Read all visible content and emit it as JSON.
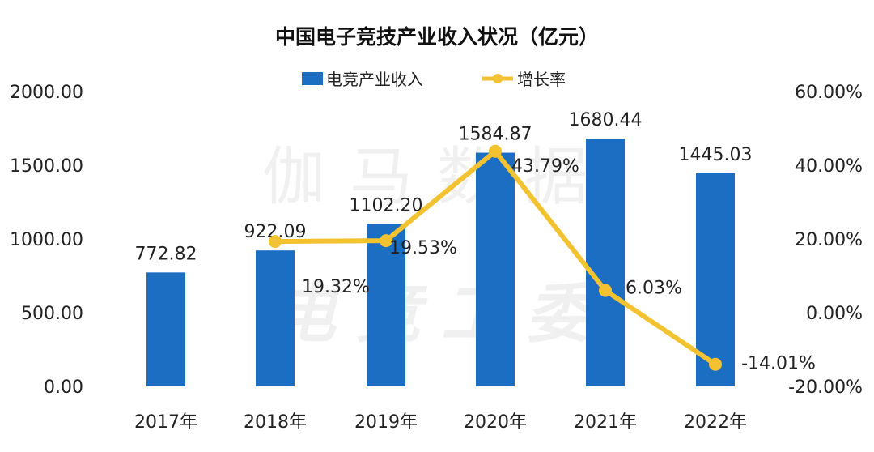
{
  "chart_data": {
    "type": "bar",
    "title": "中国电子竞技产业收入状况（亿元）",
    "categories": [
      "2017年",
      "2018年",
      "2019年",
      "2020年",
      "2021年",
      "2022年"
    ],
    "series": [
      {
        "name": "电竞产业收入",
        "type": "bar",
        "axis": "left",
        "color": "#1B6EC2",
        "values": [
          772.82,
          922.09,
          1102.2,
          1584.87,
          1680.44,
          1445.03
        ],
        "labels": [
          "772.82",
          "922.09",
          "1102.20",
          "1584.87",
          "1680.44",
          "1445.03"
        ]
      },
      {
        "name": "增长率",
        "type": "line",
        "axis": "right",
        "color": "#F2C230",
        "values": [
          null,
          19.32,
          19.53,
          43.79,
          6.03,
          -14.01
        ],
        "labels": [
          "",
          "19.32%",
          "19.53%",
          "43.79%",
          "6.03%",
          "-14.01%"
        ]
      }
    ],
    "left_axis": {
      "ylim": [
        0,
        2000
      ],
      "ticks": [
        "0.00",
        "500.00",
        "1000.00",
        "1500.00",
        "2000.00"
      ]
    },
    "right_axis": {
      "ylim": [
        -20,
        60
      ],
      "ticks": [
        "-20.00%",
        "0.00%",
        "20.00%",
        "40.00%",
        "60.00%"
      ]
    },
    "legend": "top",
    "grid": false,
    "watermark": [
      "伽马数据",
      "电竞工委"
    ]
  }
}
